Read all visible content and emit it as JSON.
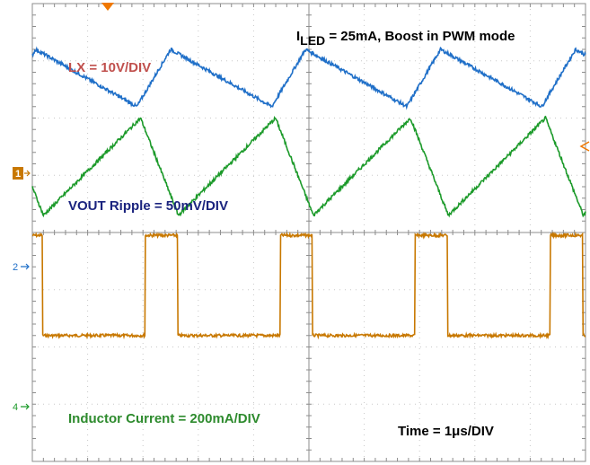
{
  "chart_data": {
    "type": "line",
    "title_main": "I",
    "title_sub": "LED",
    "title_rest": " = 25mA, Boost in PWM mode",
    "time_label": "Time = 1μs/DIV",
    "xlim": [
      0,
      10
    ],
    "x_unit": "μs",
    "grid": true,
    "grid_divisions": {
      "x": 10,
      "y": 8
    },
    "colors": {
      "lx": "#c87800",
      "lx_label": "#c0504d",
      "vout": "#1f6fc8",
      "vout_label": "#1a237e",
      "inductor": "#1c9a2a",
      "inductor_label": "#2e8b2e",
      "grid": "#c8c8c8",
      "frame": "#8c8c8c",
      "marker": "#f07800"
    },
    "series": [
      {
        "name": "LX = 10V/DIV",
        "channel_marker": "1",
        "scale": "10V/DIV",
        "waveform": "square",
        "period_us": 2.44,
        "duty": 0.24,
        "first_rise_us": 2.04,
        "low_level_div": 5.8,
        "high_level_div": 4.05
      },
      {
        "name": "VOUT Ripple = 50mV/DIV",
        "channel_marker": "2",
        "scale": "50mV/DIV",
        "waveform": "triangle",
        "period_us": 2.44,
        "first_peak_us": 0.06,
        "peak_div": 7.2,
        "trough_div": 6.2
      },
      {
        "name": "Inductor Current = 200mA/DIV",
        "channel_marker": "4",
        "scale": "200mA/DIV",
        "waveform": "triangle",
        "period_us": 2.44,
        "first_trough_us": 0.2,
        "peak_div": 6.0,
        "trough_div": 4.3
      }
    ]
  }
}
